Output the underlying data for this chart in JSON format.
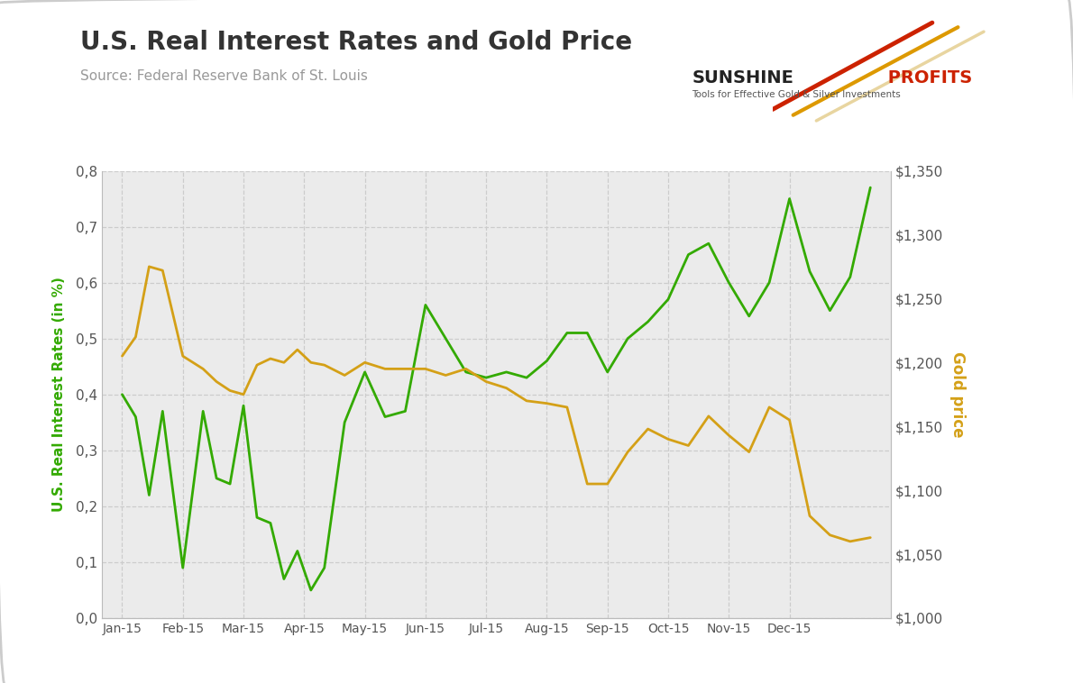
{
  "title": "U.S. Real Interest Rates and Gold Price",
  "source": "Source: Federal Reserve Bank of St. Louis",
  "left_ylabel": "U.S. Real Interest Rates (in %)",
  "right_ylabel": "Gold price",
  "background_color": "#ebebeb",
  "outer_background": "#ffffff",
  "green_color": "#33aa00",
  "gold_color": "#d4a017",
  "title_color": "#333333",
  "source_color": "#999999",
  "right_ylabel_color": "#d4a017",
  "left_ylabel_color": "#33aa00",
  "x_labels": [
    "Jan-15",
    "Feb-15",
    "Mar-15",
    "Apr-15",
    "May-15",
    "Jun-15",
    "Jul-15",
    "Aug-15",
    "Sep-15",
    "Oct-15",
    "Nov-15",
    "Dec-15"
  ],
  "yleft_min": 0.0,
  "yleft_max": 0.8,
  "yleft_ticks": [
    0.0,
    0.1,
    0.2,
    0.3,
    0.4,
    0.5,
    0.6,
    0.7,
    0.8
  ],
  "yright_min": 1000,
  "yright_max": 1350,
  "yright_ticks": [
    1000,
    1050,
    1100,
    1150,
    1200,
    1250,
    1300,
    1350
  ],
  "green_x": [
    0,
    2,
    4,
    6,
    9,
    12,
    14,
    16,
    18,
    20,
    22,
    24,
    26,
    28,
    30,
    33,
    36,
    39,
    42,
    45,
    48,
    51,
    54,
    57,
    60,
    63,
    66,
    69,
    72,
    75,
    78,
    81,
    84,
    87,
    90,
    93,
    96,
    99,
    102,
    105,
    108,
    111
  ],
  "green_y": [
    0.4,
    0.36,
    0.22,
    0.37,
    0.09,
    0.37,
    0.25,
    0.24,
    0.38,
    0.18,
    0.17,
    0.07,
    0.12,
    0.05,
    0.09,
    0.35,
    0.44,
    0.36,
    0.37,
    0.56,
    0.5,
    0.44,
    0.43,
    0.44,
    0.43,
    0.46,
    0.51,
    0.51,
    0.44,
    0.5,
    0.53,
    0.57,
    0.65,
    0.67,
    0.6,
    0.54,
    0.6,
    0.75,
    0.62,
    0.55,
    0.61,
    0.77
  ],
  "gold_x": [
    0,
    2,
    4,
    6,
    9,
    12,
    14,
    16,
    18,
    20,
    22,
    24,
    26,
    28,
    30,
    33,
    36,
    39,
    42,
    45,
    48,
    51,
    54,
    57,
    60,
    63,
    66,
    69,
    72,
    75,
    78,
    81,
    84,
    87,
    90,
    93,
    96,
    99,
    102,
    105,
    108,
    111
  ],
  "gold_y": [
    1205,
    1220,
    1275,
    1272,
    1205,
    1195,
    1185,
    1178,
    1175,
    1198,
    1203,
    1200,
    1210,
    1200,
    1198,
    1190,
    1200,
    1195,
    1195,
    1195,
    1190,
    1195,
    1185,
    1180,
    1170,
    1168,
    1165,
    1105,
    1105,
    1130,
    1148,
    1140,
    1135,
    1158,
    1143,
    1130,
    1165,
    1155,
    1080,
    1065,
    1060,
    1063
  ],
  "x_tick_positions": [
    0,
    9,
    18,
    27,
    36,
    45,
    54,
    63,
    72,
    81,
    90,
    99
  ],
  "xlim_min": -3,
  "xlim_max": 114
}
